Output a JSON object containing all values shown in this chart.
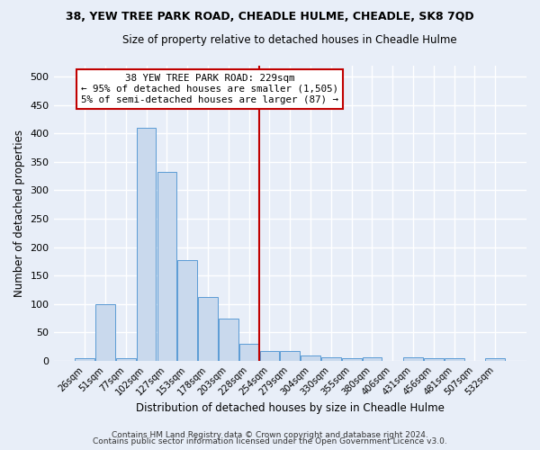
{
  "title": "38, YEW TREE PARK ROAD, CHEADLE HULME, CHEADLE, SK8 7QD",
  "subtitle": "Size of property relative to detached houses in Cheadle Hulme",
  "xlabel": "Distribution of detached houses by size in Cheadle Hulme",
  "ylabel": "Number of detached properties",
  "bar_labels": [
    "26sqm",
    "51sqm",
    "77sqm",
    "102sqm",
    "127sqm",
    "153sqm",
    "178sqm",
    "203sqm",
    "228sqm",
    "254sqm",
    "279sqm",
    "304sqm",
    "330sqm",
    "355sqm",
    "380sqm",
    "406sqm",
    "431sqm",
    "456sqm",
    "481sqm",
    "507sqm",
    "532sqm"
  ],
  "bar_values": [
    5,
    100,
    5,
    410,
    333,
    178,
    113,
    75,
    30,
    18,
    18,
    10,
    6,
    4,
    6,
    0,
    6,
    5,
    4,
    0,
    4
  ],
  "bar_color": "#c9d9ed",
  "bar_edge_color": "#5b9bd5",
  "vline_x": 8.5,
  "vline_color": "#c00000",
  "annotation_line1": "38 YEW TREE PARK ROAD: 229sqm",
  "annotation_line2": "← 95% of detached houses are smaller (1,505)",
  "annotation_line3": "5% of semi-detached houses are larger (87) →",
  "annotation_box_color": "#ffffff",
  "annotation_box_edge": "#c00000",
  "ylim": [
    0,
    520
  ],
  "yticks": [
    0,
    50,
    100,
    150,
    200,
    250,
    300,
    350,
    400,
    450,
    500
  ],
  "footer1": "Contains HM Land Registry data © Crown copyright and database right 2024.",
  "footer2": "Contains public sector information licensed under the Open Government Licence v3.0.",
  "bg_color": "#e8eef8",
  "grid_color": "#ffffff"
}
